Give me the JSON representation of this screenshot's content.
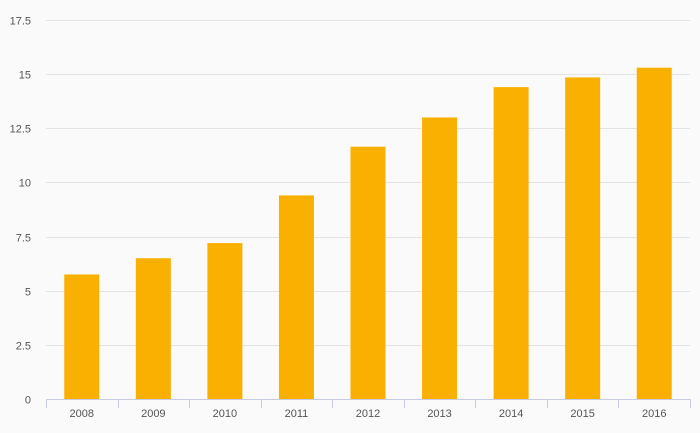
{
  "chart_data": {
    "type": "bar",
    "categories": [
      "2008",
      "2009",
      "2010",
      "2011",
      "2012",
      "2013",
      "2014",
      "2015",
      "2016"
    ],
    "values": [
      5.75,
      6.5,
      7.2,
      9.4,
      11.65,
      13.0,
      14.4,
      14.85,
      15.3
    ],
    "y_ticks": [
      "0",
      "2.5",
      "5",
      "7.5",
      "10",
      "12.5",
      "15",
      "17.5"
    ],
    "ylim": [
      0,
      17.5
    ],
    "grid": true,
    "bar_color": "#f9b000",
    "title": "",
    "xlabel": "",
    "ylabel": ""
  }
}
